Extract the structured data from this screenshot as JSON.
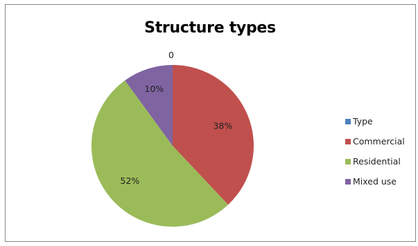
{
  "chart_data": {
    "type": "pie",
    "title": "Structure types",
    "categories": [
      "Type",
      "Commercial",
      "Residential",
      "Mixed use"
    ],
    "values": [
      0,
      38,
      52,
      10
    ],
    "data_labels": [
      "0",
      "38%",
      "52%",
      "10%"
    ],
    "colors": [
      "#4f81bd",
      "#c0504d",
      "#9bbb59",
      "#8064a2"
    ],
    "legend_position": "right",
    "start_angle": "top, clockwise"
  }
}
